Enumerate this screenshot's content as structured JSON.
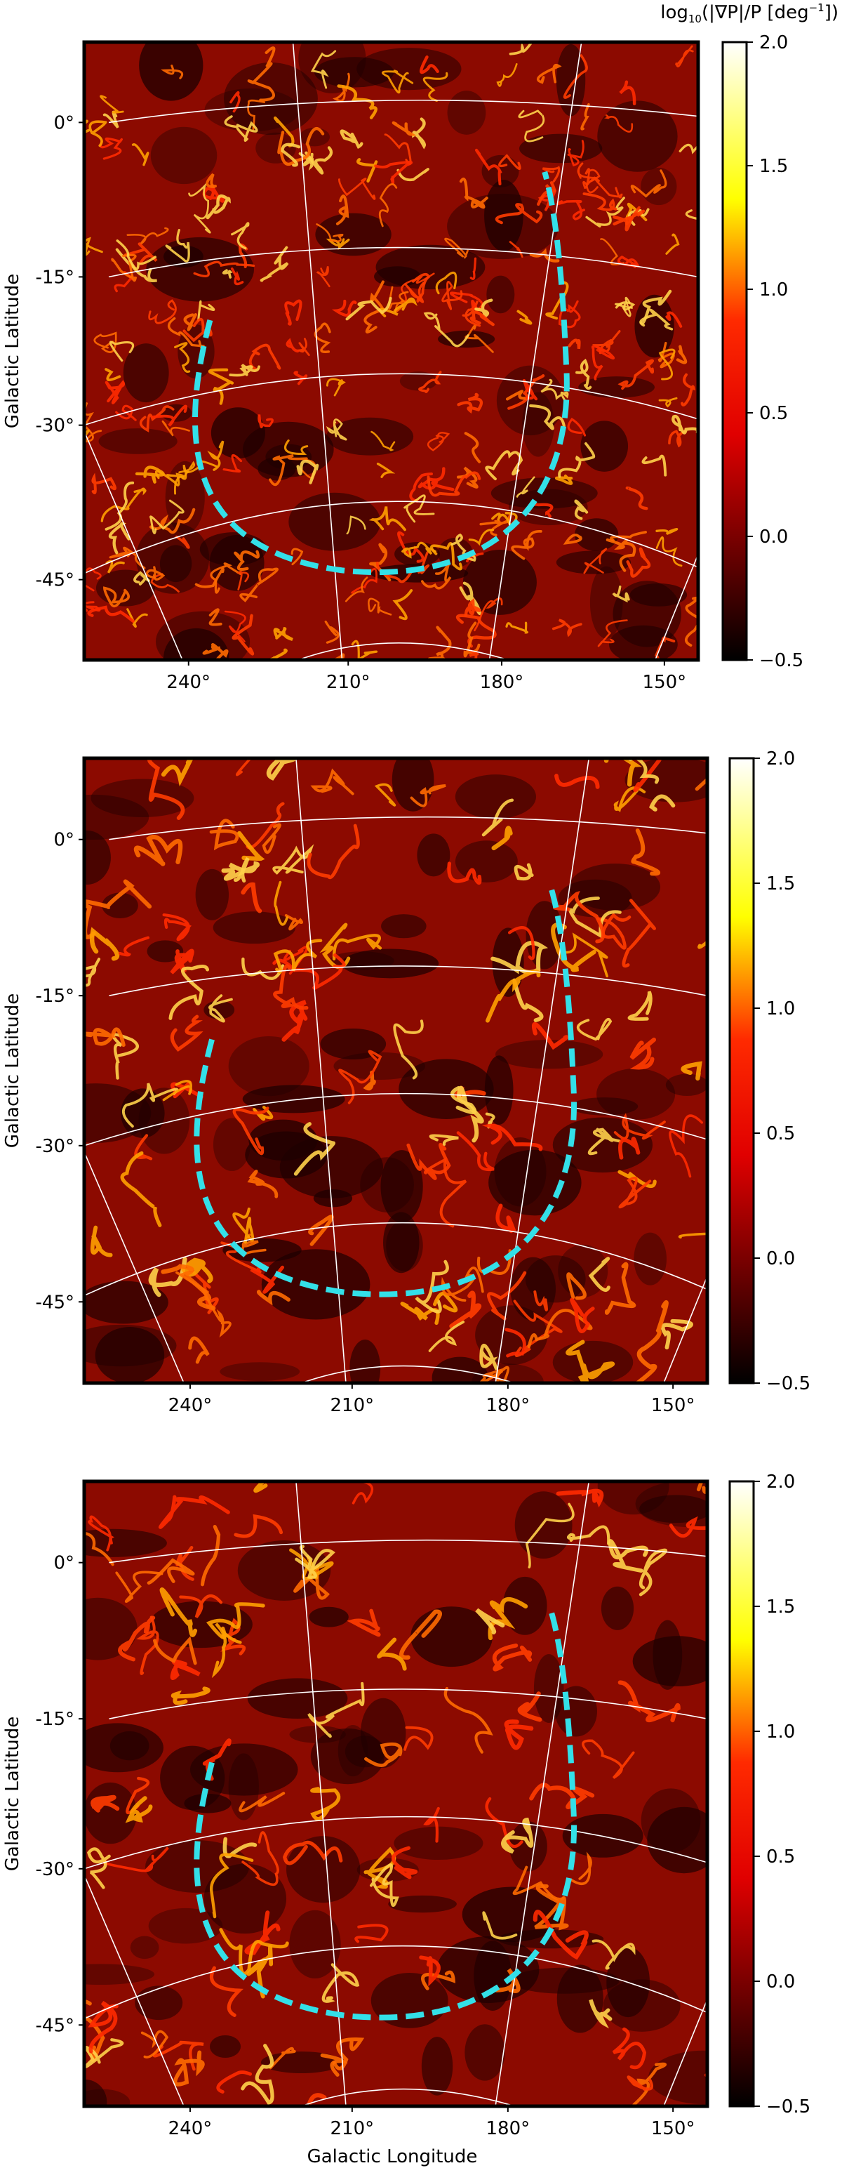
{
  "chart_data": [
    {
      "type": "heatmap",
      "panel": "top",
      "colorbar_label_base": "log",
      "colorbar_label_sub": "10",
      "colorbar_label_rest": "(|∇P|/P [deg",
      "colorbar_label_sup": "−1",
      "colorbar_label_end": "])",
      "colorbar_range": [
        -0.5,
        2.0
      ],
      "colorbar_ticks": [
        "−0.5",
        "0.0",
        "0.5",
        "1.0",
        "1.5",
        "2.0"
      ],
      "colormap": "hot",
      "ylabel": "Galactic Latitude",
      "xlabel": "",
      "y_ticks": [
        "0°",
        "-15°",
        "-30°",
        "-45°"
      ],
      "x_ticks": [
        "240°",
        "210°",
        "180°",
        "150°"
      ],
      "grid": true,
      "feature_density": "high",
      "overlay_color": "#33e0e8"
    },
    {
      "type": "heatmap",
      "panel": "middle",
      "colorbar_range": [
        -0.5,
        2.0
      ],
      "colorbar_ticks": [
        "−0.5",
        "0.0",
        "0.5",
        "1.0",
        "1.5",
        "2.0"
      ],
      "colormap": "hot",
      "ylabel": "Galactic Latitude",
      "xlabel": "",
      "y_ticks": [
        "0°",
        "-15°",
        "-30°",
        "-45°"
      ],
      "x_ticks": [
        "240°",
        "210°",
        "180°",
        "150°"
      ],
      "grid": true,
      "feature_density": "medium",
      "overlay_color": "#33e0e8"
    },
    {
      "type": "heatmap",
      "panel": "bottom",
      "colorbar_range": [
        -0.5,
        2.0
      ],
      "colorbar_ticks": [
        "−0.5",
        "0.0",
        "0.5",
        "1.0",
        "1.5",
        "2.0"
      ],
      "colormap": "hot",
      "ylabel": "Galactic Latitude",
      "xlabel": "Galactic Longitude",
      "y_ticks": [
        "0°",
        "-15°",
        "-30°",
        "-45°"
      ],
      "x_ticks": [
        "240°",
        "210°",
        "180°",
        "150°"
      ],
      "grid": true,
      "feature_density": "low",
      "overlay_color": "#33e0e8"
    }
  ]
}
